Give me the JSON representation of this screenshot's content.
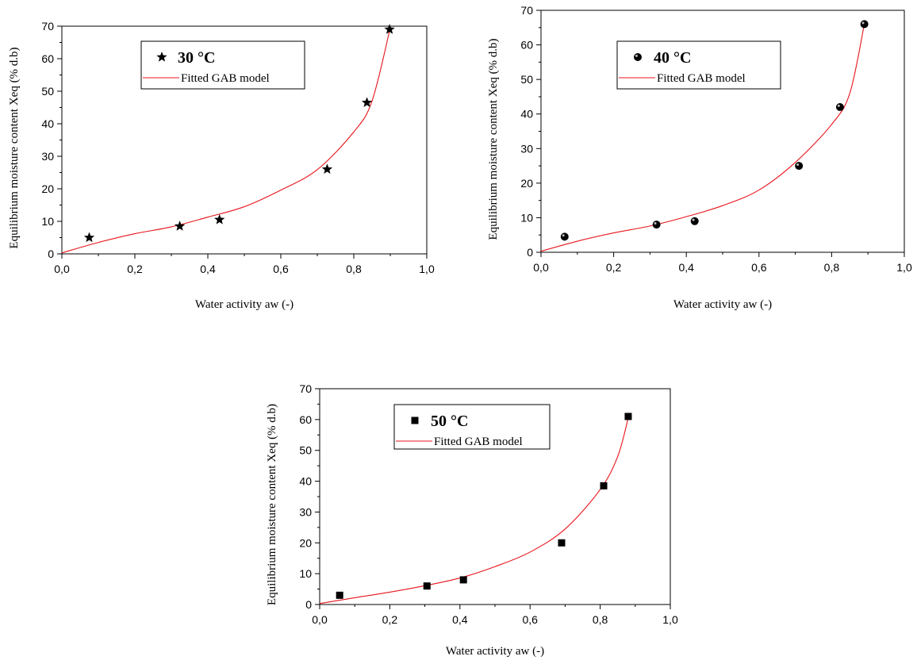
{
  "chart_data": [
    {
      "type": "scatter",
      "xlabel": "Water activity aw (-)",
      "ylabel": "Equilibrium moisture content Xeq (% d.b)",
      "xlim": [
        0,
        1.0
      ],
      "ylim": [
        0,
        70
      ],
      "xticks": [
        "0,0",
        "0,2",
        "0,4",
        "0,6",
        "0,8",
        "1,0"
      ],
      "yticks": [
        "0",
        "10",
        "20",
        "30",
        "40",
        "50",
        "60",
        "70"
      ],
      "legend_placement": "top-left",
      "series": [
        {
          "name": "30 °C",
          "marker": "star",
          "x": [
            0.075,
            0.323,
            0.432,
            0.727,
            0.836,
            0.898
          ],
          "y": [
            5.0,
            8.5,
            10.5,
            26.0,
            46.5,
            69.0
          ]
        },
        {
          "name": "Fitted GAB model",
          "type": "line",
          "color": "#e8141b",
          "x": [
            0.0,
            0.1,
            0.2,
            0.3,
            0.4,
            0.5,
            0.6,
            0.7,
            0.8,
            0.85,
            0.9
          ],
          "y": [
            0.3,
            3.5,
            6.2,
            8.3,
            11.3,
            14.5,
            19.6,
            25.9,
            37.5,
            47.0,
            69.5
          ]
        }
      ]
    },
    {
      "type": "scatter",
      "xlabel": "Water activity aw (-)",
      "ylabel": "Equilibrium moisture content Xeq (% d.b)",
      "xlim": [
        0,
        1.0
      ],
      "ylim": [
        0,
        70
      ],
      "xticks": [
        "0,0",
        "0,2",
        "0,4",
        "0,6",
        "0,8",
        "1,0"
      ],
      "yticks": [
        "0",
        "10",
        "20",
        "30",
        "40",
        "50",
        "60",
        "70"
      ],
      "legend_placement": "top-left",
      "series": [
        {
          "name": "40 °C",
          "marker": "sphere",
          "x": [
            0.065,
            0.318,
            0.423,
            0.71,
            0.823,
            0.89
          ],
          "y": [
            4.5,
            8.0,
            9.0,
            25.0,
            42.0,
            66.0
          ]
        },
        {
          "name": "Fitted GAB model",
          "type": "line",
          "color": "#e8141b",
          "x": [
            0.0,
            0.1,
            0.2,
            0.3,
            0.4,
            0.5,
            0.6,
            0.7,
            0.8,
            0.85,
            0.89
          ],
          "y": [
            0.3,
            3.2,
            5.6,
            7.6,
            10.3,
            13.5,
            18.0,
            26.0,
            37.0,
            46.0,
            66.0
          ]
        }
      ]
    },
    {
      "type": "scatter",
      "xlabel": "Water activity aw (-)",
      "ylabel": "Equilibrium moisture content Xeq (% d.b)",
      "xlim": [
        0,
        1.0
      ],
      "ylim": [
        0,
        70
      ],
      "xticks": [
        "0,0",
        "0,2",
        "0,4",
        "0,6",
        "0,8",
        "1,0"
      ],
      "yticks": [
        "0",
        "10",
        "20",
        "30",
        "40",
        "50",
        "60",
        "70"
      ],
      "legend_placement": "top-left",
      "series": [
        {
          "name": "50 °C",
          "marker": "square",
          "x": [
            0.057,
            0.306,
            0.41,
            0.69,
            0.81,
            0.88
          ],
          "y": [
            3.0,
            6.0,
            8.0,
            20.0,
            38.5,
            61.0
          ]
        },
        {
          "name": "Fitted GAB model",
          "type": "line",
          "color": "#e8141b",
          "x": [
            0.0,
            0.1,
            0.2,
            0.3,
            0.4,
            0.5,
            0.6,
            0.7,
            0.8,
            0.85,
            0.88
          ],
          "y": [
            0.3,
            2.2,
            4.0,
            6.1,
            8.6,
            12.3,
            17.0,
            24.5,
            37.3,
            48.0,
            60.5
          ]
        }
      ]
    }
  ]
}
